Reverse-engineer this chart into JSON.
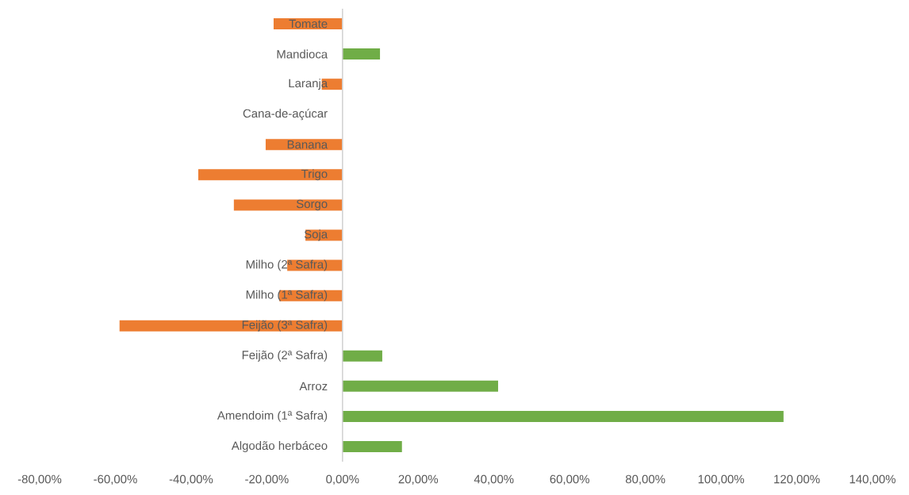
{
  "chart_data": {
    "type": "bar",
    "orientation": "horizontal",
    "categories": [
      "Tomate",
      "Mandioca",
      "Laranja",
      "Cana-de-açúcar",
      "Banana",
      "Trigo",
      "Sorgo",
      "Soja",
      "Milho (2ª Safra)",
      "Milho (1ª Safra)",
      "Feijão (3ª Safra)",
      "Feijão (2ª Safra)",
      "Arroz",
      "Amendoim (1ª Safra)",
      "Algodão herbáceo"
    ],
    "values": [
      -18.2,
      9.9,
      -5.5,
      0,
      -20.3,
      -38.1,
      -28.7,
      -9.8,
      -14.6,
      -16.7,
      -58.9,
      10.5,
      41.1,
      116.5,
      15.7
    ],
    "colors": [
      "#ed7d31",
      "#70ad47",
      "#ed7d31",
      "#ed7d31",
      "#ed7d31",
      "#ed7d31",
      "#ed7d31",
      "#ed7d31",
      "#ed7d31",
      "#ed7d31",
      "#ed7d31",
      "#70ad47",
      "#70ad47",
      "#70ad47",
      "#70ad47"
    ],
    "xlim": [
      -80,
      140
    ],
    "xticks": [
      {
        "value": -80,
        "label": "-80,00%"
      },
      {
        "value": -60,
        "label": "-60,00%"
      },
      {
        "value": -40,
        "label": "-40,00%"
      },
      {
        "value": -20,
        "label": "-20,00%"
      },
      {
        "value": 0,
        "label": "0,00%"
      },
      {
        "value": 20,
        "label": "20,00%"
      },
      {
        "value": 40,
        "label": "40,00%"
      },
      {
        "value": 60,
        "label": "60,00%"
      },
      {
        "value": 80,
        "label": "80,00%"
      },
      {
        "value": 100,
        "label": "100,00%"
      },
      {
        "value": 120,
        "label": "120,00%"
      },
      {
        "value": 140,
        "label": "140,00%"
      }
    ],
    "grid": false
  }
}
